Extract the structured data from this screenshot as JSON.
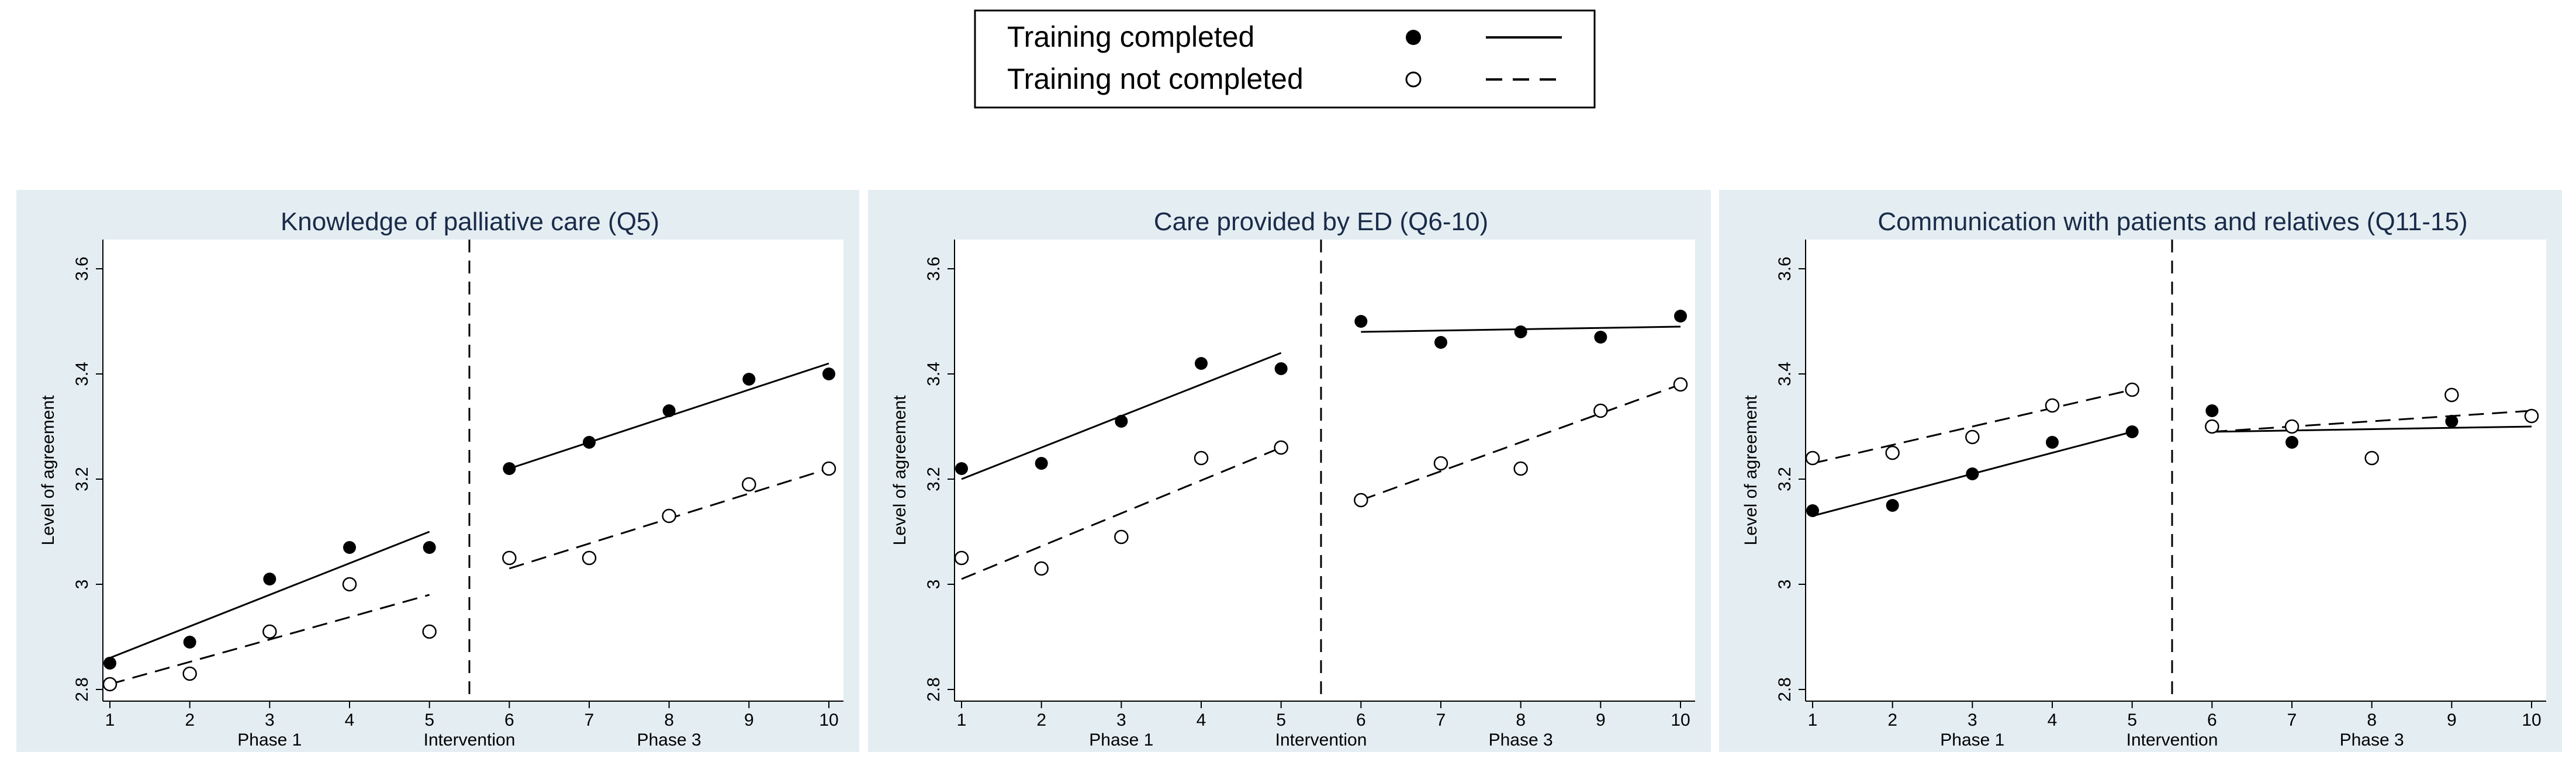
{
  "legend": {
    "items": [
      {
        "label": "Training completed",
        "marker": "filled-circle",
        "line": "solid"
      },
      {
        "label": "Training not completed",
        "marker": "hollow-circle",
        "line": "dashed"
      }
    ]
  },
  "colors": {
    "panel_background": "#e4eef2",
    "plot_background": "#ffffff",
    "title": "#1a2b4a",
    "series": "#000000"
  },
  "chart_data": [
    {
      "type": "scatter",
      "title": "Knowledge of palliative care (Q5)",
      "xlabel": "",
      "ylabel": "Level of agreement",
      "xlim": [
        1,
        10
      ],
      "ylim": [
        2.8,
        3.6
      ],
      "xticks": [
        1,
        2,
        3,
        4,
        5,
        6,
        7,
        8,
        9,
        10
      ],
      "yticks": [
        "2.8",
        "3",
        "3.2",
        "3.4",
        "3.6"
      ],
      "phase_labels": [
        "Phase 1",
        "Intervention",
        "Phase 3"
      ],
      "intervention_x": 5.5,
      "grid": false,
      "series": [
        {
          "name": "Training completed",
          "marker": "filled",
          "line": "solid",
          "x": [
            1,
            2,
            3,
            4,
            5,
            6,
            7,
            8,
            9,
            10
          ],
          "y": [
            2.85,
            2.89,
            3.01,
            3.07,
            3.07,
            3.22,
            3.27,
            3.33,
            3.39,
            3.4
          ],
          "fit": [
            [
              1,
              2.86,
              5,
              3.1
            ],
            [
              6,
              3.22,
              10,
              3.42
            ]
          ]
        },
        {
          "name": "Training not completed",
          "marker": "hollow",
          "line": "dashed",
          "x": [
            1,
            2,
            3,
            4,
            5,
            6,
            7,
            8,
            9,
            10
          ],
          "y": [
            2.81,
            2.83,
            2.91,
            3.0,
            2.91,
            3.05,
            3.05,
            3.13,
            3.19,
            3.22
          ],
          "fit": [
            [
              1,
              2.81,
              5,
              2.98
            ],
            [
              6,
              3.03,
              10,
              3.22
            ]
          ]
        }
      ]
    },
    {
      "type": "scatter",
      "title": "Care provided by ED (Q6-10)",
      "xlabel": "",
      "ylabel": "Level of agreement",
      "xlim": [
        1,
        10
      ],
      "ylim": [
        2.8,
        3.6
      ],
      "xticks": [
        1,
        2,
        3,
        4,
        5,
        6,
        7,
        8,
        9,
        10
      ],
      "yticks": [
        "2.8",
        "3",
        "3.2",
        "3.4",
        "3.6"
      ],
      "phase_labels": [
        "Phase 1",
        "Intervention",
        "Phase 3"
      ],
      "intervention_x": 5.5,
      "grid": false,
      "series": [
        {
          "name": "Training completed",
          "marker": "filled",
          "line": "solid",
          "x": [
            1,
            2,
            3,
            4,
            5,
            6,
            7,
            8,
            9,
            10
          ],
          "y": [
            3.22,
            3.23,
            3.31,
            3.42,
            3.41,
            3.5,
            3.46,
            3.48,
            3.47,
            3.51
          ],
          "fit": [
            [
              1,
              3.2,
              5,
              3.44
            ],
            [
              6,
              3.48,
              10,
              3.49
            ]
          ]
        },
        {
          "name": "Training not completed",
          "marker": "hollow",
          "line": "dashed",
          "x": [
            1,
            2,
            3,
            4,
            5,
            6,
            7,
            8,
            9,
            10
          ],
          "y": [
            3.05,
            3.03,
            3.09,
            3.24,
            3.26,
            3.16,
            3.23,
            3.22,
            3.33,
            3.38
          ],
          "fit": [
            [
              1,
              3.01,
              5,
              3.26
            ],
            [
              6,
              3.16,
              10,
              3.38
            ]
          ]
        }
      ]
    },
    {
      "type": "scatter",
      "title": "Communication with patients and relatives (Q11-15)",
      "xlabel": "",
      "ylabel": "Level of agreement",
      "xlim": [
        1,
        10
      ],
      "ylim": [
        2.8,
        3.6
      ],
      "xticks": [
        1,
        2,
        3,
        4,
        5,
        6,
        7,
        8,
        9,
        10
      ],
      "yticks": [
        "2.8",
        "3",
        "3.2",
        "3.4",
        "3.6"
      ],
      "phase_labels": [
        "Phase 1",
        "Intervention",
        "Phase 3"
      ],
      "intervention_x": 5.5,
      "grid": false,
      "series": [
        {
          "name": "Training completed",
          "marker": "filled",
          "line": "solid",
          "x": [
            1,
            2,
            3,
            4,
            5,
            6,
            7,
            8,
            9,
            10
          ],
          "y": [
            3.14,
            3.15,
            3.21,
            3.27,
            3.29,
            3.33,
            3.27,
            3.24,
            3.31,
            3.32
          ],
          "fit": [
            [
              1,
              3.13,
              5,
              3.29
            ],
            [
              6,
              3.29,
              10,
              3.3
            ]
          ]
        },
        {
          "name": "Training not completed",
          "marker": "hollow",
          "line": "dashed",
          "x": [
            1,
            2,
            3,
            4,
            5,
            6,
            7,
            8,
            9,
            10
          ],
          "y": [
            3.24,
            3.25,
            3.28,
            3.34,
            3.37,
            3.3,
            3.3,
            3.24,
            3.36,
            3.32
          ],
          "fit": [
            [
              1,
              3.23,
              5,
              3.37
            ],
            [
              6,
              3.29,
              10,
              3.33
            ]
          ]
        }
      ]
    }
  ]
}
